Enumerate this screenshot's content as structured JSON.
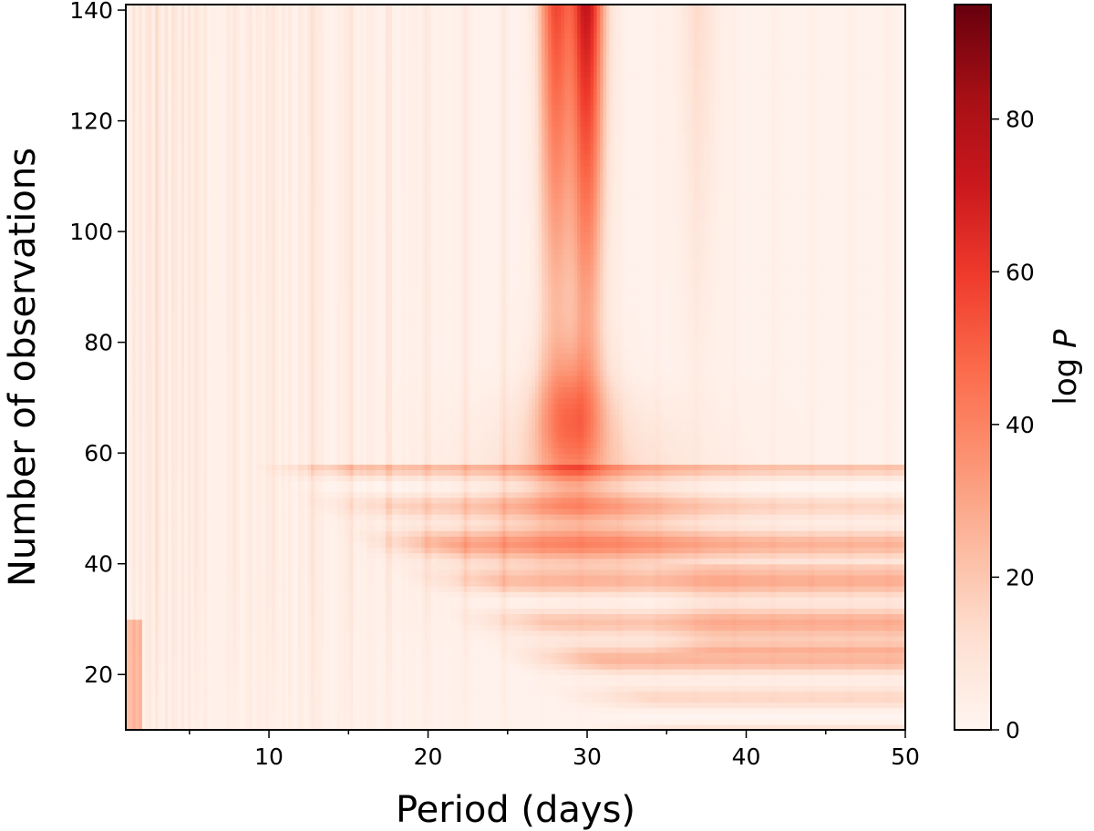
{
  "chart_data": {
    "type": "heatmap",
    "title": "",
    "xlabel": "Period (days)",
    "ylabel": "Number of observations",
    "colorbar_label_prefix": "log ",
    "colorbar_label_var": "P",
    "colormap": "Reds",
    "colors": {
      "low": "#fff5f0",
      "high": "#67000d"
    },
    "xlim": [
      1,
      50
    ],
    "ylim": [
      10,
      141
    ],
    "clim": [
      0,
      95
    ],
    "x_ticks": [
      10,
      20,
      30,
      40,
      50
    ],
    "y_ticks": [
      20,
      40,
      60,
      80,
      100,
      120,
      140
    ],
    "colorbar_ticks": [
      0,
      20,
      40,
      60,
      80
    ],
    "peak": {
      "period_days": 30,
      "log_p_max": 95,
      "observations": 140
    },
    "secondary_peak": {
      "period_days": 28,
      "observations_range": [
        60,
        140
      ]
    },
    "features": [
      {
        "description_value": "low-observation broad power",
        "period_range": [
          15,
          50
        ],
        "observations_range": [
          15,
          55
        ]
      }
    ]
  }
}
